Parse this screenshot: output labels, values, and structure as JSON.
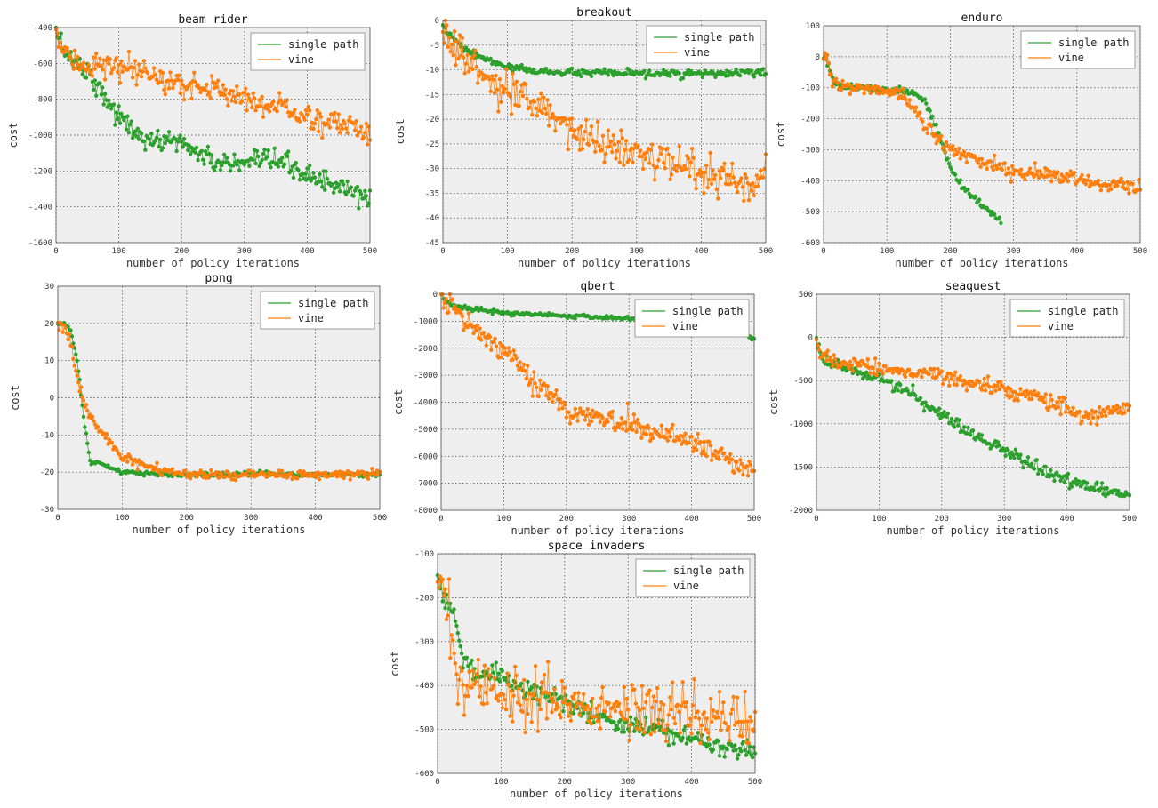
{
  "colors": {
    "single_path": "#2ca02c",
    "vine": "#ff7f0e",
    "plot_bg": "#eeeeee",
    "grid": "#444444"
  },
  "chart_data": [
    {
      "type": "scatter",
      "title": "beam rider",
      "xlabel": "number of policy iterations",
      "ylabel": "cost",
      "xlim": [
        0,
        500
      ],
      "ylim": [
        -1600,
        -400
      ],
      "xticks": [
        0,
        100,
        200,
        300,
        400,
        500
      ],
      "yticks": [
        -1600,
        -1400,
        -1200,
        -1000,
        -800,
        -600,
        -400
      ],
      "grid": true,
      "legend": "top-right",
      "series": [
        {
          "name": "single path",
          "color": "#2ca02c",
          "noise": 30,
          "x": [
            0,
            10,
            20,
            50,
            100,
            150,
            180,
            200,
            250,
            300,
            350,
            400,
            450,
            500
          ],
          "y": [
            -420,
            -500,
            -560,
            -640,
            -900,
            -1050,
            -1020,
            -1040,
            -1150,
            -1170,
            -1140,
            -1220,
            -1290,
            -1360
          ]
        },
        {
          "name": "vine",
          "color": "#ff7f0e",
          "noise": 35,
          "x": [
            0,
            10,
            25,
            50,
            100,
            150,
            200,
            250,
            300,
            350,
            400,
            450,
            500
          ],
          "y": [
            -420,
            -540,
            -590,
            -600,
            -630,
            -670,
            -720,
            -740,
            -790,
            -840,
            -900,
            -940,
            -980
          ]
        }
      ]
    },
    {
      "type": "scatter",
      "title": "breakout",
      "xlabel": "number of policy iterations",
      "ylabel": "cost",
      "xlim": [
        0,
        500
      ],
      "ylim": [
        -45,
        0
      ],
      "xticks": [
        0,
        100,
        200,
        300,
        400,
        500
      ],
      "yticks": [
        -45,
        -40,
        -35,
        -30,
        -25,
        -20,
        -15,
        -10,
        -5,
        0
      ],
      "grid": true,
      "legend": "top-right",
      "series": [
        {
          "name": "single path",
          "color": "#2ca02c",
          "noise": 0.35,
          "x": [
            0,
            10,
            30,
            50,
            80,
            100,
            150,
            200,
            300,
            400,
            500
          ],
          "y": [
            -1,
            -3,
            -5.5,
            -7,
            -8.5,
            -9.5,
            -10.3,
            -10.6,
            -10.8,
            -10.8,
            -10.6
          ]
        },
        {
          "name": "vine",
          "color": "#ff7f0e",
          "noise": 1.8,
          "x": [
            0,
            10,
            30,
            50,
            100,
            150,
            200,
            250,
            300,
            350,
            400,
            450,
            500
          ],
          "y": [
            -1,
            -4,
            -7,
            -10,
            -15,
            -18,
            -22,
            -25,
            -27,
            -28.5,
            -31,
            -32.5,
            -33
          ]
        }
      ]
    },
    {
      "type": "scatter",
      "title": "enduro",
      "xlabel": "number of policy iterations",
      "ylabel": "cost",
      "xlim": [
        0,
        500
      ],
      "ylim": [
        -600,
        100
      ],
      "xticks": [
        0,
        100,
        200,
        300,
        400,
        500
      ],
      "yticks": [
        -600,
        -500,
        -400,
        -300,
        -200,
        -100,
        0,
        100
      ],
      "grid": true,
      "legend": "top-right",
      "series": [
        {
          "name": "single path",
          "color": "#2ca02c",
          "noise": 6,
          "x": [
            0,
            5,
            10,
            15,
            30,
            60,
            100,
            140,
            160,
            180,
            200,
            220,
            250,
            280
          ],
          "y": [
            0,
            0,
            -40,
            -80,
            -95,
            -100,
            -105,
            -115,
            -140,
            -240,
            -360,
            -420,
            -480,
            -530
          ]
        },
        {
          "name": "vine",
          "color": "#ff7f0e",
          "noise": 12,
          "x": [
            0,
            5,
            10,
            15,
            30,
            60,
            100,
            130,
            160,
            200,
            250,
            300,
            350,
            400,
            450,
            500
          ],
          "y": [
            0,
            0,
            -50,
            -95,
            -100,
            -100,
            -110,
            -130,
            -220,
            -300,
            -340,
            -370,
            -380,
            -395,
            -410,
            -420
          ]
        }
      ]
    },
    {
      "type": "scatter",
      "title": "pong",
      "xlabel": "number of policy iterations",
      "ylabel": "cost",
      "xlim": [
        0,
        500
      ],
      "ylim": [
        -30,
        30
      ],
      "xticks": [
        0,
        100,
        200,
        300,
        400,
        500
      ],
      "yticks": [
        -30,
        -20,
        -10,
        0,
        10,
        20,
        30
      ],
      "grid": true,
      "legend": "top-right",
      "series": [
        {
          "name": "single path",
          "color": "#2ca02c",
          "noise": 0.3,
          "x": [
            0,
            10,
            20,
            30,
            40,
            50,
            70,
            100,
            150,
            200,
            300,
            400,
            500
          ],
          "y": [
            20,
            20,
            18,
            10,
            -5,
            -17,
            -18,
            -20,
            -20.5,
            -20.8,
            -20.5,
            -20.5,
            -20.7
          ]
        },
        {
          "name": "vine",
          "color": "#ff7f0e",
          "noise": 0.6,
          "x": [
            0,
            10,
            20,
            30,
            40,
            50,
            70,
            100,
            130,
            160,
            200,
            300,
            400,
            500
          ],
          "y": [
            20,
            19,
            15,
            5,
            -1,
            -5,
            -10,
            -16,
            -18,
            -19.5,
            -20.8,
            -20.7,
            -20.6,
            -20.5
          ]
        }
      ]
    },
    {
      "type": "scatter",
      "title": "qbert",
      "xlabel": "number of policy iterations",
      "ylabel": "cost",
      "xlim": [
        0,
        500
      ],
      "ylim": [
        -8000,
        0
      ],
      "xticks": [
        0,
        100,
        200,
        300,
        400,
        500
      ],
      "yticks": [
        -8000,
        -7000,
        -6000,
        -5000,
        -4000,
        -3000,
        -2000,
        -1000,
        0
      ],
      "grid": true,
      "legend": "top-right",
      "series": [
        {
          "name": "single path",
          "color": "#2ca02c",
          "noise": 40,
          "x": [
            0,
            10,
            30,
            100,
            200,
            300,
            350,
            390,
            460,
            480,
            500
          ],
          "y": [
            0,
            -300,
            -500,
            -700,
            -800,
            -900,
            -1000,
            -1050,
            -1200,
            -1400,
            -1650
          ]
        },
        {
          "name": "vine",
          "color": "#ff7f0e",
          "noise": 200,
          "x": [
            0,
            10,
            50,
            100,
            150,
            200,
            250,
            300,
            350,
            400,
            450,
            500
          ],
          "y": [
            0,
            -500,
            -1200,
            -2200,
            -3200,
            -4300,
            -4600,
            -4800,
            -5100,
            -5500,
            -6000,
            -6500
          ]
        }
      ]
    },
    {
      "type": "scatter",
      "title": "seaquest",
      "xlabel": "number of policy iterations",
      "ylabel": "cost",
      "xlim": [
        0,
        500
      ],
      "ylim": [
        -2000,
        500
      ],
      "xticks": [
        0,
        100,
        200,
        300,
        400,
        500
      ],
      "yticks": [
        -2000,
        -1500,
        -1000,
        -500,
        0,
        500
      ],
      "grid": true,
      "legend": "top-right",
      "series": [
        {
          "name": "single path",
          "color": "#2ca02c",
          "noise": 40,
          "x": [
            0,
            5,
            20,
            50,
            100,
            150,
            200,
            250,
            300,
            350,
            400,
            450,
            500
          ],
          "y": [
            -30,
            -200,
            -300,
            -370,
            -450,
            -650,
            -900,
            -1100,
            -1300,
            -1500,
            -1650,
            -1750,
            -1850
          ]
        },
        {
          "name": "vine",
          "color": "#ff7f0e",
          "noise": 45,
          "x": [
            0,
            5,
            20,
            50,
            100,
            150,
            200,
            250,
            300,
            350,
            400,
            420,
            450,
            500
          ],
          "y": [
            -30,
            -200,
            -280,
            -300,
            -350,
            -400,
            -450,
            -550,
            -600,
            -700,
            -800,
            -950,
            -850,
            -800
          ]
        }
      ]
    },
    {
      "type": "scatter",
      "title": "space invaders",
      "xlabel": "number of policy iterations",
      "ylabel": "cost",
      "xlim": [
        0,
        500
      ],
      "ylim": [
        -600,
        -100
      ],
      "xticks": [
        0,
        100,
        200,
        300,
        400,
        500
      ],
      "yticks": [
        -600,
        -500,
        -400,
        -300,
        -200,
        -100
      ],
      "grid": true,
      "legend": "top-right",
      "series": [
        {
          "name": "single path",
          "color": "#2ca02c",
          "noise": 12,
          "x": [
            0,
            10,
            20,
            30,
            40,
            60,
            80,
            100,
            150,
            200,
            250,
            300,
            350,
            400,
            450,
            500
          ],
          "y": [
            -150,
            -200,
            -220,
            -260,
            -330,
            -380,
            -370,
            -380,
            -420,
            -440,
            -470,
            -490,
            -500,
            -520,
            -540,
            -550
          ]
        },
        {
          "name": "vine",
          "color": "#ff7f0e",
          "noise": 30,
          "x": [
            0,
            5,
            10,
            20,
            30,
            40,
            50,
            100,
            150,
            200,
            250,
            300,
            350,
            400,
            450,
            500
          ],
          "y": [
            -150,
            -130,
            -180,
            -300,
            -380,
            -420,
            -410,
            -420,
            -430,
            -440,
            -450,
            -460,
            -465,
            -465,
            -470,
            -470
          ]
        }
      ]
    }
  ]
}
